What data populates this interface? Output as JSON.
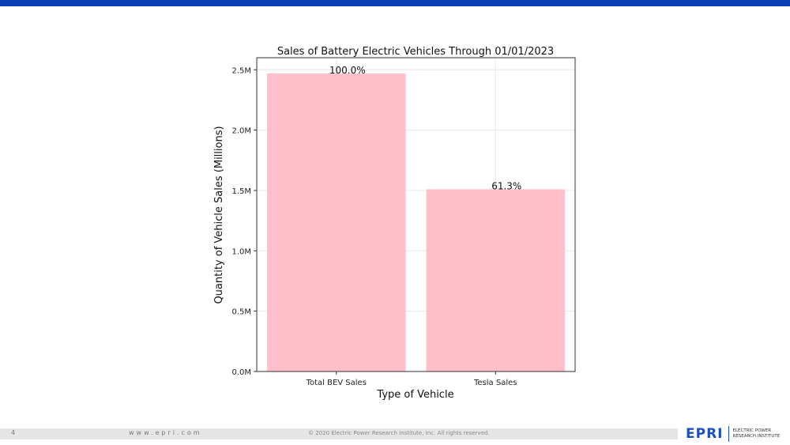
{
  "slide": {
    "page_number": "4",
    "website": "www.epri.com",
    "copyright": "© 2020 Electric Power Research Institute, Inc. All rights reserved.",
    "logo": {
      "mark": "EPRI",
      "line1": "ELECTRIC POWER",
      "line2": "RESEARCH INSTITUTE"
    },
    "colors": {
      "top_bar": "#0b3fb5",
      "brand": "#1b4fbf"
    }
  },
  "chart_data": {
    "type": "bar",
    "title": "Sales of Battery Electric Vehicles Through 01/01/2023",
    "xlabel": "Type of Vehicle",
    "ylabel": "Quantity of Vehicle Sales (Millions)",
    "categories": [
      "Total BEV Sales",
      "Tesla Sales"
    ],
    "values": [
      2.47,
      1.51
    ],
    "value_unit": "millions",
    "data_labels": [
      "100.0%",
      "61.3%"
    ],
    "yticks": [
      0,
      0.5,
      1.0,
      1.5,
      2.0,
      2.5
    ],
    "ytick_labels": [
      "0.0M",
      "0.5M",
      "1.0M",
      "1.5M",
      "2.0M",
      "2.5M"
    ],
    "ylim": [
      0,
      2.6
    ],
    "bar_color": "#ffc0cb",
    "grid": true
  }
}
